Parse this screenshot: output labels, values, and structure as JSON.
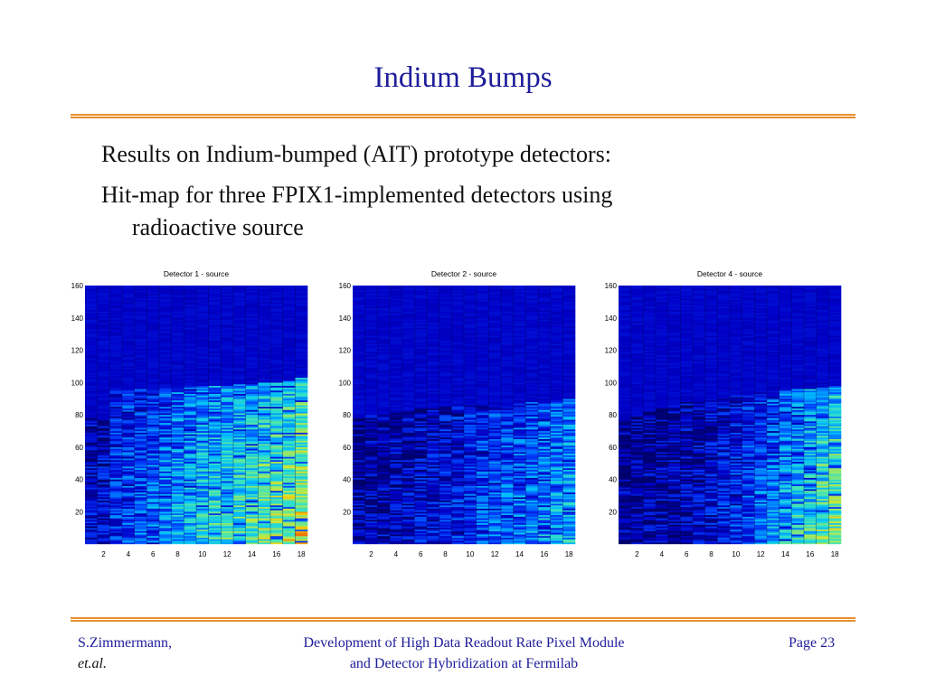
{
  "slide": {
    "title": "Indium Bumps",
    "line1": "Results on Indium-bumped (AIT) prototype detectors:",
    "line2a": "Hit-map for three FPIX1-implemented detectors using",
    "line2b": "radioactive source"
  },
  "colors": {
    "title": "#1d1d9b",
    "rule": "#e8902e"
  },
  "chart_data": [
    {
      "type": "heatmap",
      "title": "Detector 1 - source",
      "x_ticks": [
        "2",
        "4",
        "6",
        "8",
        "10",
        "12",
        "14",
        "16",
        "18"
      ],
      "y_ticks": [
        "20",
        "40",
        "60",
        "80",
        "100",
        "120",
        "140",
        "160"
      ],
      "xlim": [
        0,
        18
      ],
      "ylim": [
        0,
        160
      ],
      "columns": 18,
      "rows": 160,
      "column_edge": [
        78,
        77,
        95,
        95,
        96,
        96,
        97,
        97,
        98,
        98,
        98,
        98,
        99,
        99,
        100,
        100,
        101,
        104
      ],
      "column_intensity": [
        0.15,
        0.18,
        0.28,
        0.32,
        0.34,
        0.38,
        0.42,
        0.48,
        0.5,
        0.55,
        0.58,
        0.6,
        0.62,
        0.65,
        0.7,
        0.74,
        0.78,
        0.82
      ]
    },
    {
      "type": "heatmap",
      "title": "Detector 2 - source",
      "x_ticks": [
        "2",
        "4",
        "6",
        "8",
        "10",
        "12",
        "14",
        "16",
        "18"
      ],
      "y_ticks": [
        "20",
        "40",
        "60",
        "80",
        "100",
        "120",
        "140",
        "160"
      ],
      "xlim": [
        0,
        18
      ],
      "ylim": [
        0,
        160
      ],
      "columns": 18,
      "rows": 160,
      "column_edge": [
        78,
        80,
        80,
        82,
        82,
        84,
        84,
        85,
        85,
        86,
        86,
        87,
        87,
        88,
        88,
        89,
        89,
        90
      ],
      "column_intensity": [
        0.08,
        0.09,
        0.1,
        0.12,
        0.14,
        0.17,
        0.2,
        0.22,
        0.25,
        0.28,
        0.32,
        0.34,
        0.36,
        0.38,
        0.4,
        0.44,
        0.47,
        0.5
      ]
    },
    {
      "type": "heatmap",
      "title": "Detector 4 - source",
      "x_ticks": [
        "2",
        "4",
        "6",
        "8",
        "10",
        "12",
        "14",
        "16",
        "18"
      ],
      "y_ticks": [
        "20",
        "40",
        "60",
        "80",
        "100",
        "120",
        "140",
        "160"
      ],
      "xlim": [
        0,
        18
      ],
      "ylim": [
        0,
        160
      ],
      "columns": 18,
      "rows": 160,
      "column_edge": [
        78,
        80,
        82,
        84,
        86,
        88,
        88,
        90,
        90,
        92,
        92,
        94,
        94,
        95,
        96,
        96,
        97,
        98
      ],
      "column_intensity": [
        0.05,
        0.06,
        0.07,
        0.08,
        0.1,
        0.12,
        0.15,
        0.18,
        0.22,
        0.26,
        0.3,
        0.36,
        0.42,
        0.48,
        0.55,
        0.6,
        0.66,
        0.72
      ]
    }
  ],
  "footer": {
    "author_line1": "S.Zimmermann,",
    "author_line2": "et.al.",
    "title_line1": "Development of High Data Readout Rate Pixel Module",
    "title_line2": "and Detector Hybridization at Fermilab",
    "page": "Page 23"
  }
}
